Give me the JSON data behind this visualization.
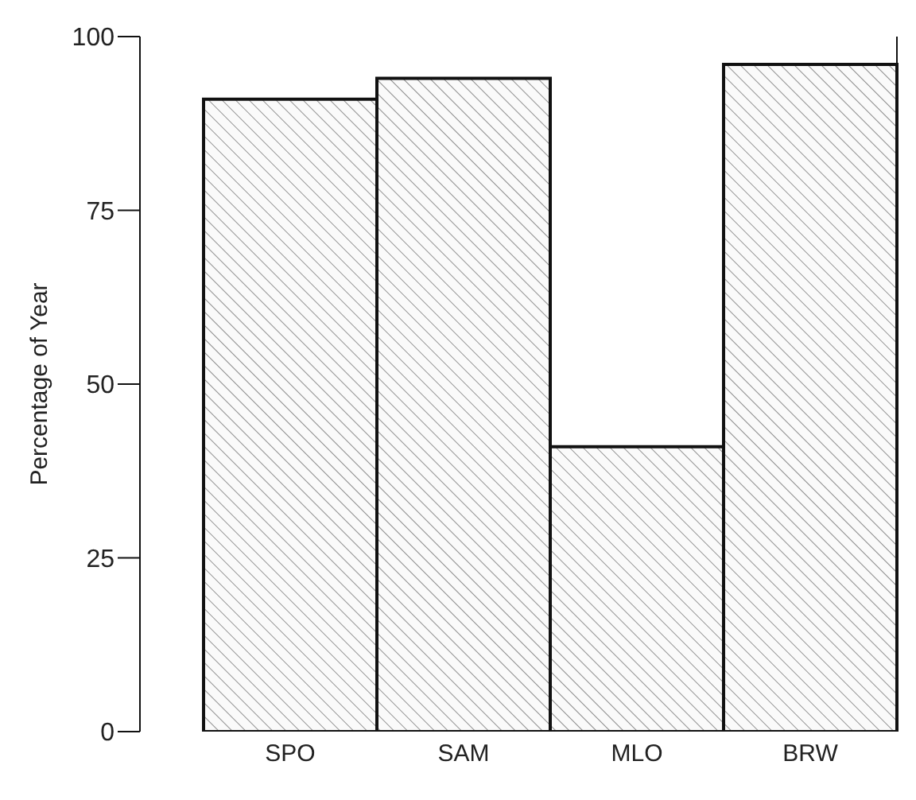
{
  "chart_data": {
    "type": "bar",
    "ylabel": "Percentage of Year",
    "categories": [
      "SPO",
      "SAM",
      "MLO",
      "BRW"
    ],
    "values": [
      91,
      94,
      41,
      96
    ],
    "color": "#111111",
    "ylim": [
      0,
      100
    ],
    "yticks": [
      0,
      25,
      50,
      75,
      100
    ],
    "grid": false
  }
}
